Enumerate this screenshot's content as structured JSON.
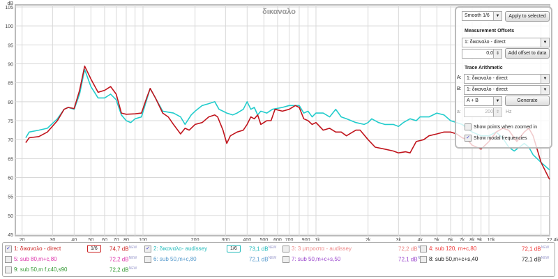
{
  "chart_data": {
    "type": "line",
    "title": "δικαναλο",
    "ylabel": "dB",
    "xunit": "Hz",
    "ylim": [
      45,
      105
    ],
    "xlim": [
      20,
      22400
    ],
    "xscale": "log",
    "grid": true,
    "yticks": [
      "45",
      "50",
      "55",
      "60",
      "65",
      "70",
      "75",
      "80",
      "85",
      "90",
      "95",
      "100",
      "105"
    ],
    "xticks": [
      {
        "f": 20,
        "l": "20"
      },
      {
        "f": 30,
        "l": "30"
      },
      {
        "f": 40,
        "l": "40"
      },
      {
        "f": 50,
        "l": "50"
      },
      {
        "f": 60,
        "l": "60"
      },
      {
        "f": 70,
        "l": "70"
      },
      {
        "f": 80,
        "l": "80"
      },
      {
        "f": 100,
        "l": "100"
      },
      {
        "f": 200,
        "l": "200"
      },
      {
        "f": 300,
        "l": "300"
      },
      {
        "f": 400,
        "l": "400"
      },
      {
        "f": 500,
        "l": "500"
      },
      {
        "f": 600,
        "l": "600"
      },
      {
        "f": 700,
        "l": "700"
      },
      {
        "f": 900,
        "l": "900"
      },
      {
        "f": 1000,
        "l": "1k"
      },
      {
        "f": 2000,
        "l": "2k"
      },
      {
        "f": 3000,
        "l": "3k"
      },
      {
        "f": 4000,
        "l": "4k"
      },
      {
        "f": 5000,
        "l": "5k"
      },
      {
        "f": 6000,
        "l": "6k"
      },
      {
        "f": 7000,
        "l": "7k"
      },
      {
        "f": 8000,
        "l": "8k"
      },
      {
        "f": 9000,
        "l": "9k"
      },
      {
        "f": 10000,
        "l": "10k"
      },
      {
        "f": 22400,
        "l": "22,4k Hz"
      }
    ],
    "series": [
      {
        "name": "1: δικαναλο - direct",
        "color": "#c0141c",
        "f": [
          21,
          22,
          25,
          28,
          32,
          35,
          37,
          40,
          43,
          46,
          50,
          55,
          60,
          65,
          70,
          75,
          80,
          90,
          98,
          105,
          110,
          118,
          130,
          140,
          150,
          165,
          175,
          185,
          200,
          220,
          240,
          260,
          270,
          290,
          305,
          320,
          350,
          380,
          400,
          420,
          440,
          460,
          480,
          520,
          550,
          580,
          640,
          700,
          760,
          800,
          850,
          900,
          950,
          1000,
          1100,
          1200,
          1300,
          1400,
          1500,
          1700,
          1800,
          2000,
          2200,
          2500,
          2800,
          3000,
          3300,
          3500,
          3800,
          4200,
          4500,
          5000,
          5500,
          6000,
          6500,
          7000,
          7500,
          8000,
          8500,
          9000,
          10000,
          11000,
          12000,
          13000,
          14500,
          16000,
          17000,
          18000,
          20000,
          22400
        ],
        "db": [
          69.2,
          70.5,
          70.8,
          72,
          75,
          78,
          78.5,
          78.2,
          83,
          89.4,
          86,
          82.5,
          83,
          84,
          82,
          77,
          76.7,
          76.8,
          77,
          81,
          83.5,
          81,
          77,
          76,
          74,
          71.5,
          73,
          72.5,
          74,
          74.5,
          76,
          76.5,
          76,
          72.5,
          69,
          71,
          72,
          72.5,
          74,
          76,
          75.5,
          76.5,
          74,
          75,
          75,
          78,
          77.5,
          78,
          79,
          78.5,
          75.5,
          75,
          74,
          74.5,
          72.5,
          73,
          72,
          72,
          71,
          72.5,
          72.5,
          70,
          68,
          67.5,
          67,
          66.5,
          66.8,
          66.5,
          69.5,
          70,
          71,
          71.5,
          72,
          72,
          71.5,
          70.5,
          70,
          68.5,
          68,
          67.5,
          69.5,
          72,
          73,
          72.5,
          69.5,
          72,
          73,
          71,
          64,
          59.5
        ]
      },
      {
        "name": "2: δικαναλο- audissey",
        "color": "#22cccc",
        "f": [
          21,
          22,
          25,
          28,
          32,
          35,
          37,
          40,
          43,
          46,
          50,
          55,
          60,
          65,
          70,
          75,
          80,
          85,
          90,
          98,
          105,
          110,
          118,
          130,
          150,
          165,
          175,
          190,
          200,
          220,
          240,
          260,
          275,
          290,
          305,
          330,
          350,
          380,
          400,
          420,
          440,
          460,
          480,
          520,
          560,
          640,
          700,
          800,
          850,
          900,
          950,
          1000,
          1100,
          1200,
          1300,
          1400,
          1500,
          1700,
          1900,
          2000,
          2100,
          2300,
          2500,
          2800,
          3000,
          3200,
          3500,
          3800,
          4000,
          4500,
          5000,
          5500,
          6000,
          7000,
          8000,
          9000,
          10000,
          11000,
          12000,
          13000,
          14000,
          15000,
          16000,
          17000,
          18000,
          20000,
          22400
        ],
        "db": [
          70.5,
          72,
          72.5,
          73,
          75.5,
          78,
          78.5,
          78,
          82,
          88.5,
          84,
          81,
          81,
          82,
          80.5,
          76.5,
          75,
          74.5,
          75.5,
          76,
          80.5,
          83.5,
          81,
          77.5,
          77,
          76,
          74,
          76.5,
          77.5,
          79,
          79.5,
          80,
          78,
          77.5,
          77,
          76.5,
          77,
          78,
          80,
          78,
          78.5,
          76.5,
          77.5,
          77,
          78,
          78.5,
          79,
          79,
          77,
          77.5,
          76,
          77,
          77,
          76,
          78,
          76,
          75.5,
          74.5,
          74,
          74.5,
          75.5,
          74.5,
          74,
          74,
          73.5,
          74.5,
          75.5,
          75,
          76,
          76,
          77,
          76.5,
          75,
          74,
          72,
          71,
          71,
          72,
          70.5,
          68,
          67,
          68,
          69,
          68,
          66,
          64,
          62
        ]
      }
    ]
  },
  "panel": {
    "smoothing": "Smooth 1/6",
    "apply_label": "Apply to selected",
    "offsets_title": "Measurement Offsets",
    "offset_measurement": "1: δικαναλο - direct",
    "offset_value": "0,0",
    "add_offset_label": "Add offset to data",
    "arith_title": "Trace Arithmetic",
    "a_label": "A:",
    "a_value": "1: δικαναλο - direct",
    "b_label": "B:",
    "b_value": "1: δικαναλο - direct",
    "op_value": "A + B",
    "generate_label": "Generate",
    "a_freq_label": "a:",
    "freq_value": "200",
    "freq_unit": "Hz",
    "show_points": "Show points when zoomed in",
    "show_points_checked": false,
    "show_modal": "Show modal frequencies",
    "show_modal_checked": true
  },
  "legend": [
    {
      "label": "1: δικαναλο - direct",
      "value": "74,7 dB",
      "new": "NEW",
      "color": "#cc2222",
      "checked": true,
      "smooth": "1/6"
    },
    {
      "label": "2: δικαναλο- audissey",
      "value": "73,1 dB",
      "new": "NEW",
      "color": "#22bbbb",
      "checked": true,
      "smooth": "1/6"
    },
    {
      "label": "3: 3 μπροστα - audissey",
      "value": "72,2 dB",
      "new": "NEW",
      "color": "#ee8888",
      "checked": false
    },
    {
      "label": "4: sub 120, m+c,80",
      "value": "72,1 dB",
      "new": "NEW",
      "color": "#ee3333",
      "checked": false
    },
    {
      "label": "5: sub 80,m+c,80",
      "value": "72,2 dB",
      "new": "NEW",
      "color": "#dd33aa",
      "checked": false
    },
    {
      "label": "6: sub 50,m+c,80",
      "value": "72,1 dB",
      "new": "NEW",
      "color": "#5599cc",
      "checked": false
    },
    {
      "label": "7: sub 50,m+c+s,50",
      "value": "72,1 dB",
      "new": "NEW",
      "color": "#9944cc",
      "checked": false
    },
    {
      "label": "8: sub 50,m+c+s,40",
      "value": "72,1 dB",
      "new": "NEW",
      "color": "#222222",
      "checked": false
    },
    {
      "label": "9: sub 50,m f,c40,s90",
      "value": "72,2 dB",
      "new": "NEW",
      "color": "#339933",
      "checked": false
    }
  ]
}
